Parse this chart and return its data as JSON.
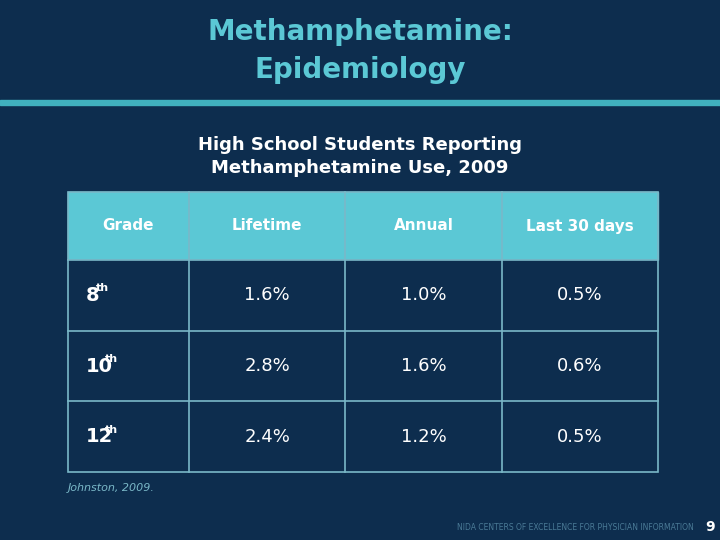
{
  "title_line1": "Methamphetamine:",
  "title_line2": "Epidemiology",
  "subtitle_line1": "High School Students Reporting",
  "subtitle_line2": "Methamphetamine Use, 2009",
  "header_row": [
    "Grade",
    "Lifetime",
    "Annual",
    "Last 30 days"
  ],
  "data_rows": [
    [
      "8",
      "th",
      "1.6%",
      "1.0%",
      "0.5%"
    ],
    [
      "10",
      "th",
      "2.8%",
      "1.6%",
      "0.6%"
    ],
    [
      "12",
      "th",
      "2.4%",
      "1.2%",
      "0.5%"
    ]
  ],
  "footer": "Johnston, 2009.",
  "watermark": "NIDA CENTERS OF EXCELLENCE FOR PHYSICIAN INFORMATION",
  "page_num": "9",
  "bg_color": "#0d2d4e",
  "title_color": "#5bc8d5",
  "header_bg_color": "#5bc8d5",
  "header_text_color": "#ffffff",
  "cell_text_color": "#ffffff",
  "table_border_color": "#7ab8c8",
  "accent_line_color": "#40b0be",
  "subtitle_color": "#ffffff",
  "footer_color": "#7ab8c8",
  "watermark_color": "#4a7a96",
  "page_num_color": "#ffffff"
}
